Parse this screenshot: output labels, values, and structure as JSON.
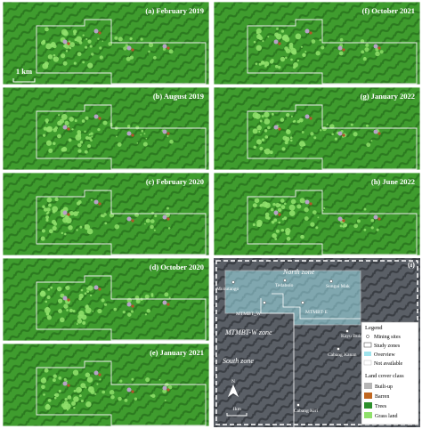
{
  "panels": [
    "(a) February 2019",
    "(b) August 2019",
    "(c) February 2020",
    "(d) October 2020",
    "(e) January 2021",
    "(f) October 2021",
    "(g) January 2022",
    "(h) June 2022"
  ],
  "scale_bar": "1 km",
  "inset": {
    "label": "(i)",
    "zones": [
      "North zone",
      "MTMBT-W zone",
      "South zone"
    ],
    "sites": [
      "Mohutango",
      "Tedabolo",
      "Sungai Mak",
      "MTMBT_W",
      "MTMBT-E",
      "Kayu Bulan",
      "Cabang Kanan",
      "Cabang Kiri"
    ],
    "north": "N",
    "scale_bar": "1km",
    "legend": {
      "title": "Legend",
      "items": [
        "Mining sites",
        "Study zones",
        "Overview",
        "Not available"
      ],
      "class_title": "Land cover class",
      "classes": [
        "Built-up",
        "Barren",
        "Trees",
        "Grass land"
      ]
    }
  }
}
